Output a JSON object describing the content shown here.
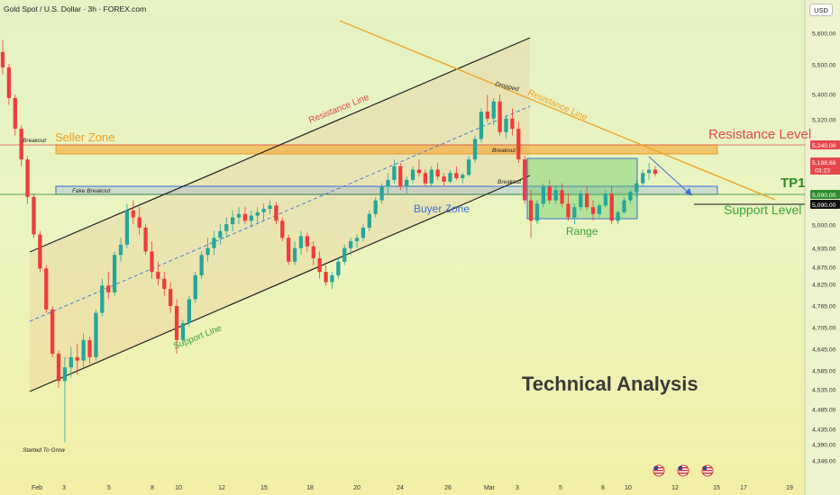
{
  "header": {
    "symbol_title": "Gold Spot / U.S. Dollar · 3h · FOREX.com",
    "currency": "USD"
  },
  "colors": {
    "up": "#26a69a",
    "down": "#ef3b3b",
    "seller_zone": "#f5a623",
    "buyer_zone": "#4a78d8",
    "range_box": "#6fcf6f",
    "channel": "#222222",
    "resistance_line": "#f0a020"
  },
  "chart_data": {
    "type": "candlestick",
    "title": "",
    "y_axis_ticks": [
      "5,600.00",
      "5,500.00",
      "5,400.00",
      "5,320.00",
      "5,240.00",
      "5,170.00",
      "5,090.00",
      "5,000.00",
      "4,935.00",
      "4,875.00",
      "4,825.00",
      "4,765.00",
      "4,705.00",
      "4,645.00",
      "4,585.00",
      "4,535.00",
      "4,485.00",
      "4,435.00",
      "4,390.00",
      "4,346.00"
    ],
    "x_axis_ticks": [
      "Feb",
      "3",
      "5",
      "8",
      "10",
      "12",
      "15",
      "18",
      "20",
      "24",
      "26",
      "Mar",
      "3",
      "5",
      "8",
      "10",
      "12",
      "15",
      "17",
      "19"
    ],
    "price_labels": [
      {
        "label": "5,240.00",
        "kind": "resistance"
      },
      {
        "label": "5,188.68",
        "kind": "last"
      },
      {
        "label": "03:23",
        "kind": "countdown"
      },
      {
        "label": "5,090.00",
        "kind": "support"
      },
      {
        "label": "5,090.00",
        "kind": "support-dark"
      }
    ],
    "candles_ohlc": [
      [
        5545,
        5580,
        5480,
        5500
      ],
      [
        5500,
        5510,
        5390,
        5410
      ],
      [
        5410,
        5420,
        5300,
        5320
      ],
      [
        5320,
        5330,
        5210,
        5230
      ],
      [
        5230,
        5240,
        5100,
        5120
      ],
      [
        5120,
        5130,
        5000,
        5010
      ],
      [
        5010,
        5020,
        4900,
        4910
      ],
      [
        4910,
        4920,
        4780,
        4790
      ],
      [
        4790,
        4800,
        4650,
        4660
      ],
      [
        4660,
        4670,
        4560,
        4580
      ],
      [
        4580,
        4650,
        4400,
        4620
      ],
      [
        4620,
        4680,
        4590,
        4650
      ],
      [
        4650,
        4690,
        4600,
        4640
      ],
      [
        4640,
        4720,
        4620,
        4700
      ],
      [
        4700,
        4710,
        4630,
        4650
      ],
      [
        4650,
        4790,
        4640,
        4780
      ],
      [
        4780,
        4880,
        4770,
        4860
      ],
      [
        4860,
        4900,
        4820,
        4840
      ],
      [
        4840,
        4960,
        4830,
        4950
      ],
      [
        4950,
        5000,
        4930,
        4980
      ],
      [
        4980,
        5100,
        4970,
        5080
      ],
      [
        5080,
        5110,
        5040,
        5060
      ],
      [
        5060,
        5090,
        5010,
        5030
      ],
      [
        5030,
        5040,
        4950,
        4960
      ],
      [
        4960,
        4990,
        4880,
        4900
      ],
      [
        4900,
        4930,
        4860,
        4880
      ],
      [
        4880,
        4900,
        4830,
        4850
      ],
      [
        4850,
        4870,
        4780,
        4800
      ],
      [
        4800,
        4820,
        4660,
        4700
      ],
      [
        4700,
        4760,
        4690,
        4750
      ],
      [
        4750,
        4830,
        4740,
        4820
      ],
      [
        4820,
        4900,
        4810,
        4890
      ],
      [
        4890,
        4960,
        4880,
        4950
      ],
      [
        4950,
        5000,
        4930,
        4970
      ],
      [
        4970,
        5020,
        4950,
        5000
      ],
      [
        5000,
        5040,
        4980,
        5020
      ],
      [
        5020,
        5060,
        5000,
        5040
      ],
      [
        5040,
        5080,
        5020,
        5060
      ],
      [
        5060,
        5090,
        5040,
        5070
      ],
      [
        5070,
        5090,
        5040,
        5050
      ],
      [
        5050,
        5080,
        5030,
        5065
      ],
      [
        5065,
        5090,
        5040,
        5075
      ],
      [
        5075,
        5100,
        5050,
        5085
      ],
      [
        5085,
        5110,
        5070,
        5095
      ],
      [
        5095,
        5105,
        5040,
        5050
      ],
      [
        5050,
        5060,
        4990,
        5000
      ],
      [
        5000,
        5010,
        4920,
        4930
      ],
      [
        4930,
        4990,
        4920,
        4970
      ],
      [
        4970,
        5020,
        4950,
        5005
      ],
      [
        5005,
        5015,
        4960,
        4975
      ],
      [
        4975,
        4990,
        4920,
        4940
      ],
      [
        4940,
        4960,
        4880,
        4900
      ],
      [
        4900,
        4920,
        4860,
        4870
      ],
      [
        4870,
        4900,
        4850,
        4890
      ],
      [
        4890,
        4940,
        4880,
        4930
      ],
      [
        4930,
        4980,
        4920,
        4970
      ],
      [
        4970,
        5000,
        4950,
        4990
      ],
      [
        4990,
        5010,
        4970,
        5000
      ],
      [
        5000,
        5040,
        4990,
        5030
      ],
      [
        5030,
        5080,
        5020,
        5070
      ],
      [
        5070,
        5120,
        5060,
        5110
      ],
      [
        5110,
        5160,
        5100,
        5150
      ],
      [
        5150,
        5190,
        5130,
        5170
      ],
      [
        5170,
        5230,
        5160,
        5210
      ],
      [
        5210,
        5220,
        5140,
        5150
      ],
      [
        5150,
        5180,
        5130,
        5170
      ],
      [
        5170,
        5210,
        5160,
        5200
      ],
      [
        5200,
        5230,
        5180,
        5190
      ],
      [
        5190,
        5200,
        5150,
        5160
      ],
      [
        5160,
        5210,
        5150,
        5200
      ],
      [
        5200,
        5220,
        5170,
        5180
      ],
      [
        5180,
        5190,
        5150,
        5165
      ],
      [
        5165,
        5200,
        5160,
        5190
      ],
      [
        5190,
        5210,
        5170,
        5175
      ],
      [
        5175,
        5190,
        5160,
        5185
      ],
      [
        5185,
        5240,
        5180,
        5230
      ],
      [
        5230,
        5300,
        5220,
        5290
      ],
      [
        5290,
        5380,
        5280,
        5370
      ],
      [
        5370,
        5420,
        5340,
        5350
      ],
      [
        5350,
        5410,
        5330,
        5400
      ],
      [
        5400,
        5420,
        5300,
        5310
      ],
      [
        5310,
        5360,
        5290,
        5350
      ],
      [
        5350,
        5380,
        5300,
        5320
      ],
      [
        5320,
        5340,
        5220,
        5230
      ],
      [
        5230,
        5240,
        5100,
        5110
      ],
      [
        5110,
        5140,
        5000,
        5050
      ],
      [
        5050,
        5110,
        5040,
        5100
      ],
      [
        5100,
        5160,
        5090,
        5150
      ],
      [
        5150,
        5170,
        5100,
        5110
      ],
      [
        5110,
        5150,
        5100,
        5140
      ],
      [
        5140,
        5160,
        5090,
        5100
      ],
      [
        5100,
        5130,
        5050,
        5060
      ],
      [
        5060,
        5100,
        5040,
        5090
      ],
      [
        5090,
        5140,
        5080,
        5130
      ],
      [
        5130,
        5150,
        5080,
        5090
      ],
      [
        5090,
        5110,
        5050,
        5070
      ],
      [
        5070,
        5100,
        5060,
        5095
      ],
      [
        5095,
        5140,
        5090,
        5130
      ],
      [
        5130,
        5150,
        5040,
        5050
      ],
      [
        5050,
        5080,
        5040,
        5075
      ],
      [
        5075,
        5120,
        5070,
        5110
      ],
      [
        5110,
        5140,
        5100,
        5135
      ],
      [
        5135,
        5170,
        5120,
        5160
      ],
      [
        5160,
        5200,
        5150,
        5190
      ],
      [
        5190,
        5220,
        5170,
        5200
      ],
      [
        5200,
        5210,
        5180,
        5188
      ]
    ]
  },
  "annotations": {
    "seller_zone": "Seller Zone",
    "buyer_zone": "Buyer Zone",
    "resistance_level": "Resistance Level",
    "support_level": "Support Level",
    "tp1": "TP1",
    "range": "Range",
    "technical_analysis": "Technical Analysis",
    "resistance_line_1": "Resistance Line",
    "resistance_line_2": "Resistance Line",
    "support_line": "Support Line",
    "dropped": "Dropped",
    "breakout_left": "Breakout",
    "breakout_mid": "Breakout",
    "breakout_lower": "Breakout",
    "fake_breakout": "Fake Breakout",
    "started_to_grow": "Started To Grow"
  },
  "event_icons": [
    "us-flag-event-icon",
    "us-flag-event-icon",
    "us-flag-event-icon"
  ]
}
